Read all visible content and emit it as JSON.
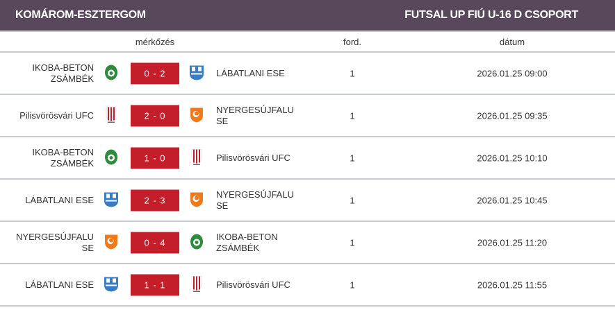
{
  "header": {
    "region": "KOMÁROM-ESZTERGOM",
    "competition": "FUTSAL UP FIÚ U-16 D CSOPORT"
  },
  "columns": {
    "match": "mérkőzés",
    "round": "ford.",
    "date": "dátum"
  },
  "crest_colors": {
    "ikoba": "#2e8b3e",
    "labatlan": "#3a7cc4",
    "pilis": "#c41e2b",
    "nyerges": "#f07a1a"
  },
  "matches": [
    {
      "home": "IKOBA-BETON ZSÁMBÉK",
      "home_crest": "ikoba",
      "score": "0 - 2",
      "away": "LÁBATLANI ESE",
      "away_crest": "labatlan",
      "round": "1",
      "date": "2026.01.25 09:00"
    },
    {
      "home": "Pilisvörösvári UFC",
      "home_crest": "pilis",
      "score": "2 - 0",
      "away": "NYERGESÚJFALU SE",
      "away_crest": "nyerges",
      "round": "1",
      "date": "2026.01.25 09:35"
    },
    {
      "home": "IKOBA-BETON ZSÁMBÉK",
      "home_crest": "ikoba",
      "score": "1 - 0",
      "away": "Pilisvörösvári UFC",
      "away_crest": "pilis",
      "round": "1",
      "date": "2026.01.25 10:10"
    },
    {
      "home": "LÁBATLANI ESE",
      "home_crest": "labatlan",
      "score": "2 - 3",
      "away": "NYERGESÚJFALU SE",
      "away_crest": "nyerges",
      "round": "1",
      "date": "2026.01.25 10:45"
    },
    {
      "home": "NYERGESÚJFALU SE",
      "home_crest": "nyerges",
      "score": "0 - 4",
      "away": "IKOBA-BETON ZSÁMBÉK",
      "away_crest": "ikoba",
      "round": "1",
      "date": "2026.01.25 11:20"
    },
    {
      "home": "LÁBATLANI ESE",
      "home_crest": "labatlan",
      "score": "1 - 1",
      "away": "Pilisvörösvári UFC",
      "away_crest": "pilis",
      "round": "1",
      "date": "2026.01.25 11:55"
    }
  ]
}
